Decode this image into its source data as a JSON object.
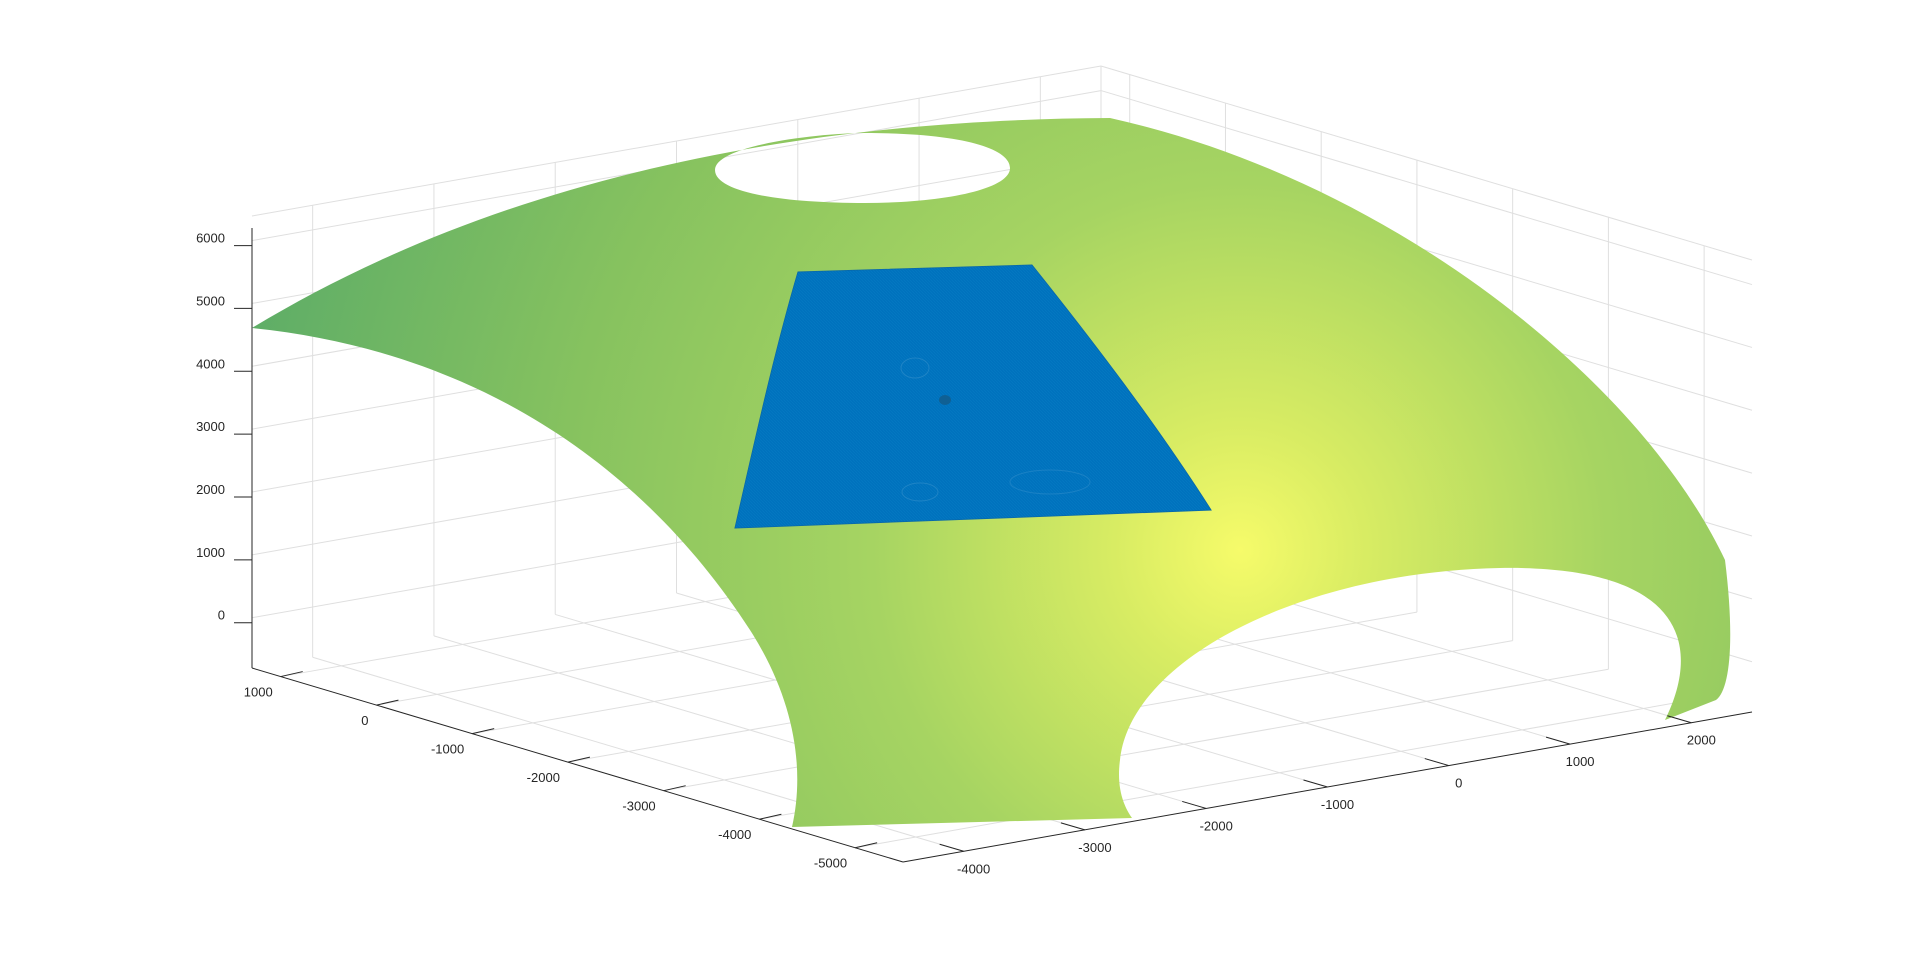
{
  "chart_data": {
    "type": "surface3d",
    "title": "",
    "xlabel": "",
    "ylabel": "",
    "zlabel": "",
    "grid": true,
    "box": true,
    "colormap": "parula",
    "colors": {
      "surface_dark": "#5aab68",
      "surface_mid": "#9fcf62",
      "surface_peak": "#f6fb6a",
      "patch": "#0072bd",
      "axis": "#262626",
      "grid": "#dfdfdf"
    },
    "x_axis": {
      "ticks": [
        -4000,
        -3000,
        -2000,
        -1000,
        0,
        1000,
        2000
      ],
      "range": [
        -4500,
        2500
      ]
    },
    "y_axis": {
      "ticks": [
        1000,
        0,
        -1000,
        -2000,
        -3000,
        -4000,
        -5000
      ],
      "range": [
        -5500,
        1300
      ]
    },
    "z_axis": {
      "ticks": [
        0,
        1000,
        2000,
        3000,
        4000,
        5000,
        6000
      ],
      "range": [
        -800,
        6200
      ]
    },
    "series": [
      {
        "kind": "surface",
        "shape": "dome shell with openings"
      },
      {
        "kind": "mesh_patch",
        "shape": "curved rectangular patch on dome"
      }
    ]
  }
}
